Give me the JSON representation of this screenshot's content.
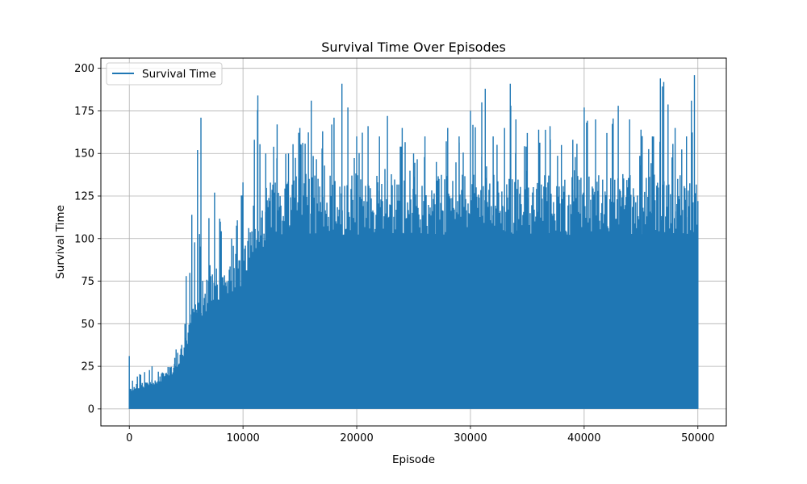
{
  "chart_data": {
    "type": "line",
    "title": "Survival Time Over Episodes",
    "xlabel": "Episode",
    "ylabel": "Survival Time",
    "xlim": [
      -2500,
      52500
    ],
    "ylim": [
      -10,
      206
    ],
    "xticks": [
      0,
      10000,
      20000,
      30000,
      40000,
      50000
    ],
    "xtick_labels": [
      "0",
      "10000",
      "20000",
      "30000",
      "40000",
      "50000"
    ],
    "yticks": [
      0,
      25,
      50,
      75,
      100,
      125,
      150,
      175,
      200
    ],
    "ytick_labels": [
      "0",
      "25",
      "50",
      "75",
      "100",
      "125",
      "150",
      "175",
      "200"
    ],
    "grid": true,
    "legend_position": "upper-left",
    "series": [
      {
        "name": "Survival Time",
        "color": "#1f77b4",
        "episodes_total": 50000,
        "min_value": 0,
        "approx_upper_envelope": {
          "x": [
            0,
            1000,
            2000,
            3000,
            4000,
            5000,
            5500,
            6000,
            6300,
            7000,
            7500,
            8000,
            9000,
            10000,
            11000,
            11300,
            12000,
            13000,
            14000,
            15000,
            16000,
            17000,
            18000,
            18700,
            20000,
            21000,
            22000,
            22700,
            24000,
            25000,
            26000,
            27000,
            28000,
            29000,
            30000,
            31000,
            31300,
            32000,
            33000,
            33500,
            34000,
            35000,
            36000,
            37000,
            38000,
            39000,
            40000,
            41000,
            42000,
            43000,
            44000,
            45000,
            46000,
            46700,
            47000,
            48000,
            49000,
            49700,
            50000
          ],
          "y": [
            31,
            20,
            25,
            21,
            30,
            78,
            114,
            152,
            171,
            112,
            127,
            110,
            100,
            133,
            158,
            184,
            150,
            167,
            150,
            165,
            181,
            163,
            171,
            191,
            160,
            166,
            160,
            172,
            165,
            150,
            160,
            145,
            165,
            160,
            175,
            180,
            188,
            160,
            165,
            191,
            170,
            162,
            164,
            166,
            155,
            158,
            177,
            170,
            162,
            178,
            170,
            164,
            160,
            194,
            192,
            165,
            160,
            196,
            122
          ]
        },
        "approx_typical_level": {
          "x": [
            0,
            2000,
            4000,
            5000,
            6000,
            8000,
            10000,
            12000,
            14000,
            20000,
            30000,
            40000,
            50000
          ],
          "y": [
            12,
            15,
            25,
            40,
            60,
            75,
            85,
            115,
            120,
            120,
            120,
            120,
            120
          ]
        }
      }
    ]
  }
}
